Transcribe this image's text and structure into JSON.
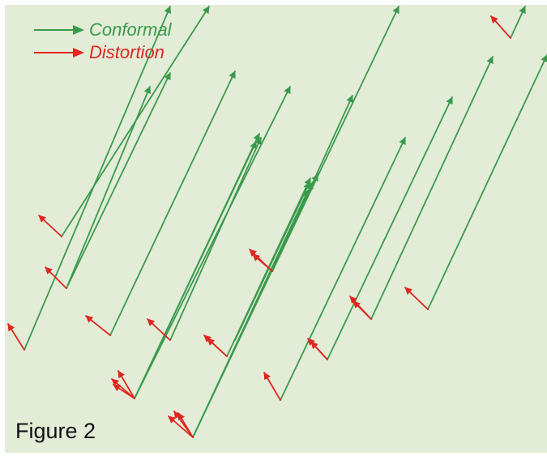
{
  "legend": {
    "conformal_label": "Conformal",
    "distortion_label": "Distortion"
  },
  "caption": "Figure 2",
  "colors": {
    "background": "#e2ecd7",
    "conformal": "#3a9a4c",
    "distortion": "#e0261f",
    "caption": "#111111"
  },
  "vector_counts": {
    "conformal": 21,
    "distortion": 22
  }
}
